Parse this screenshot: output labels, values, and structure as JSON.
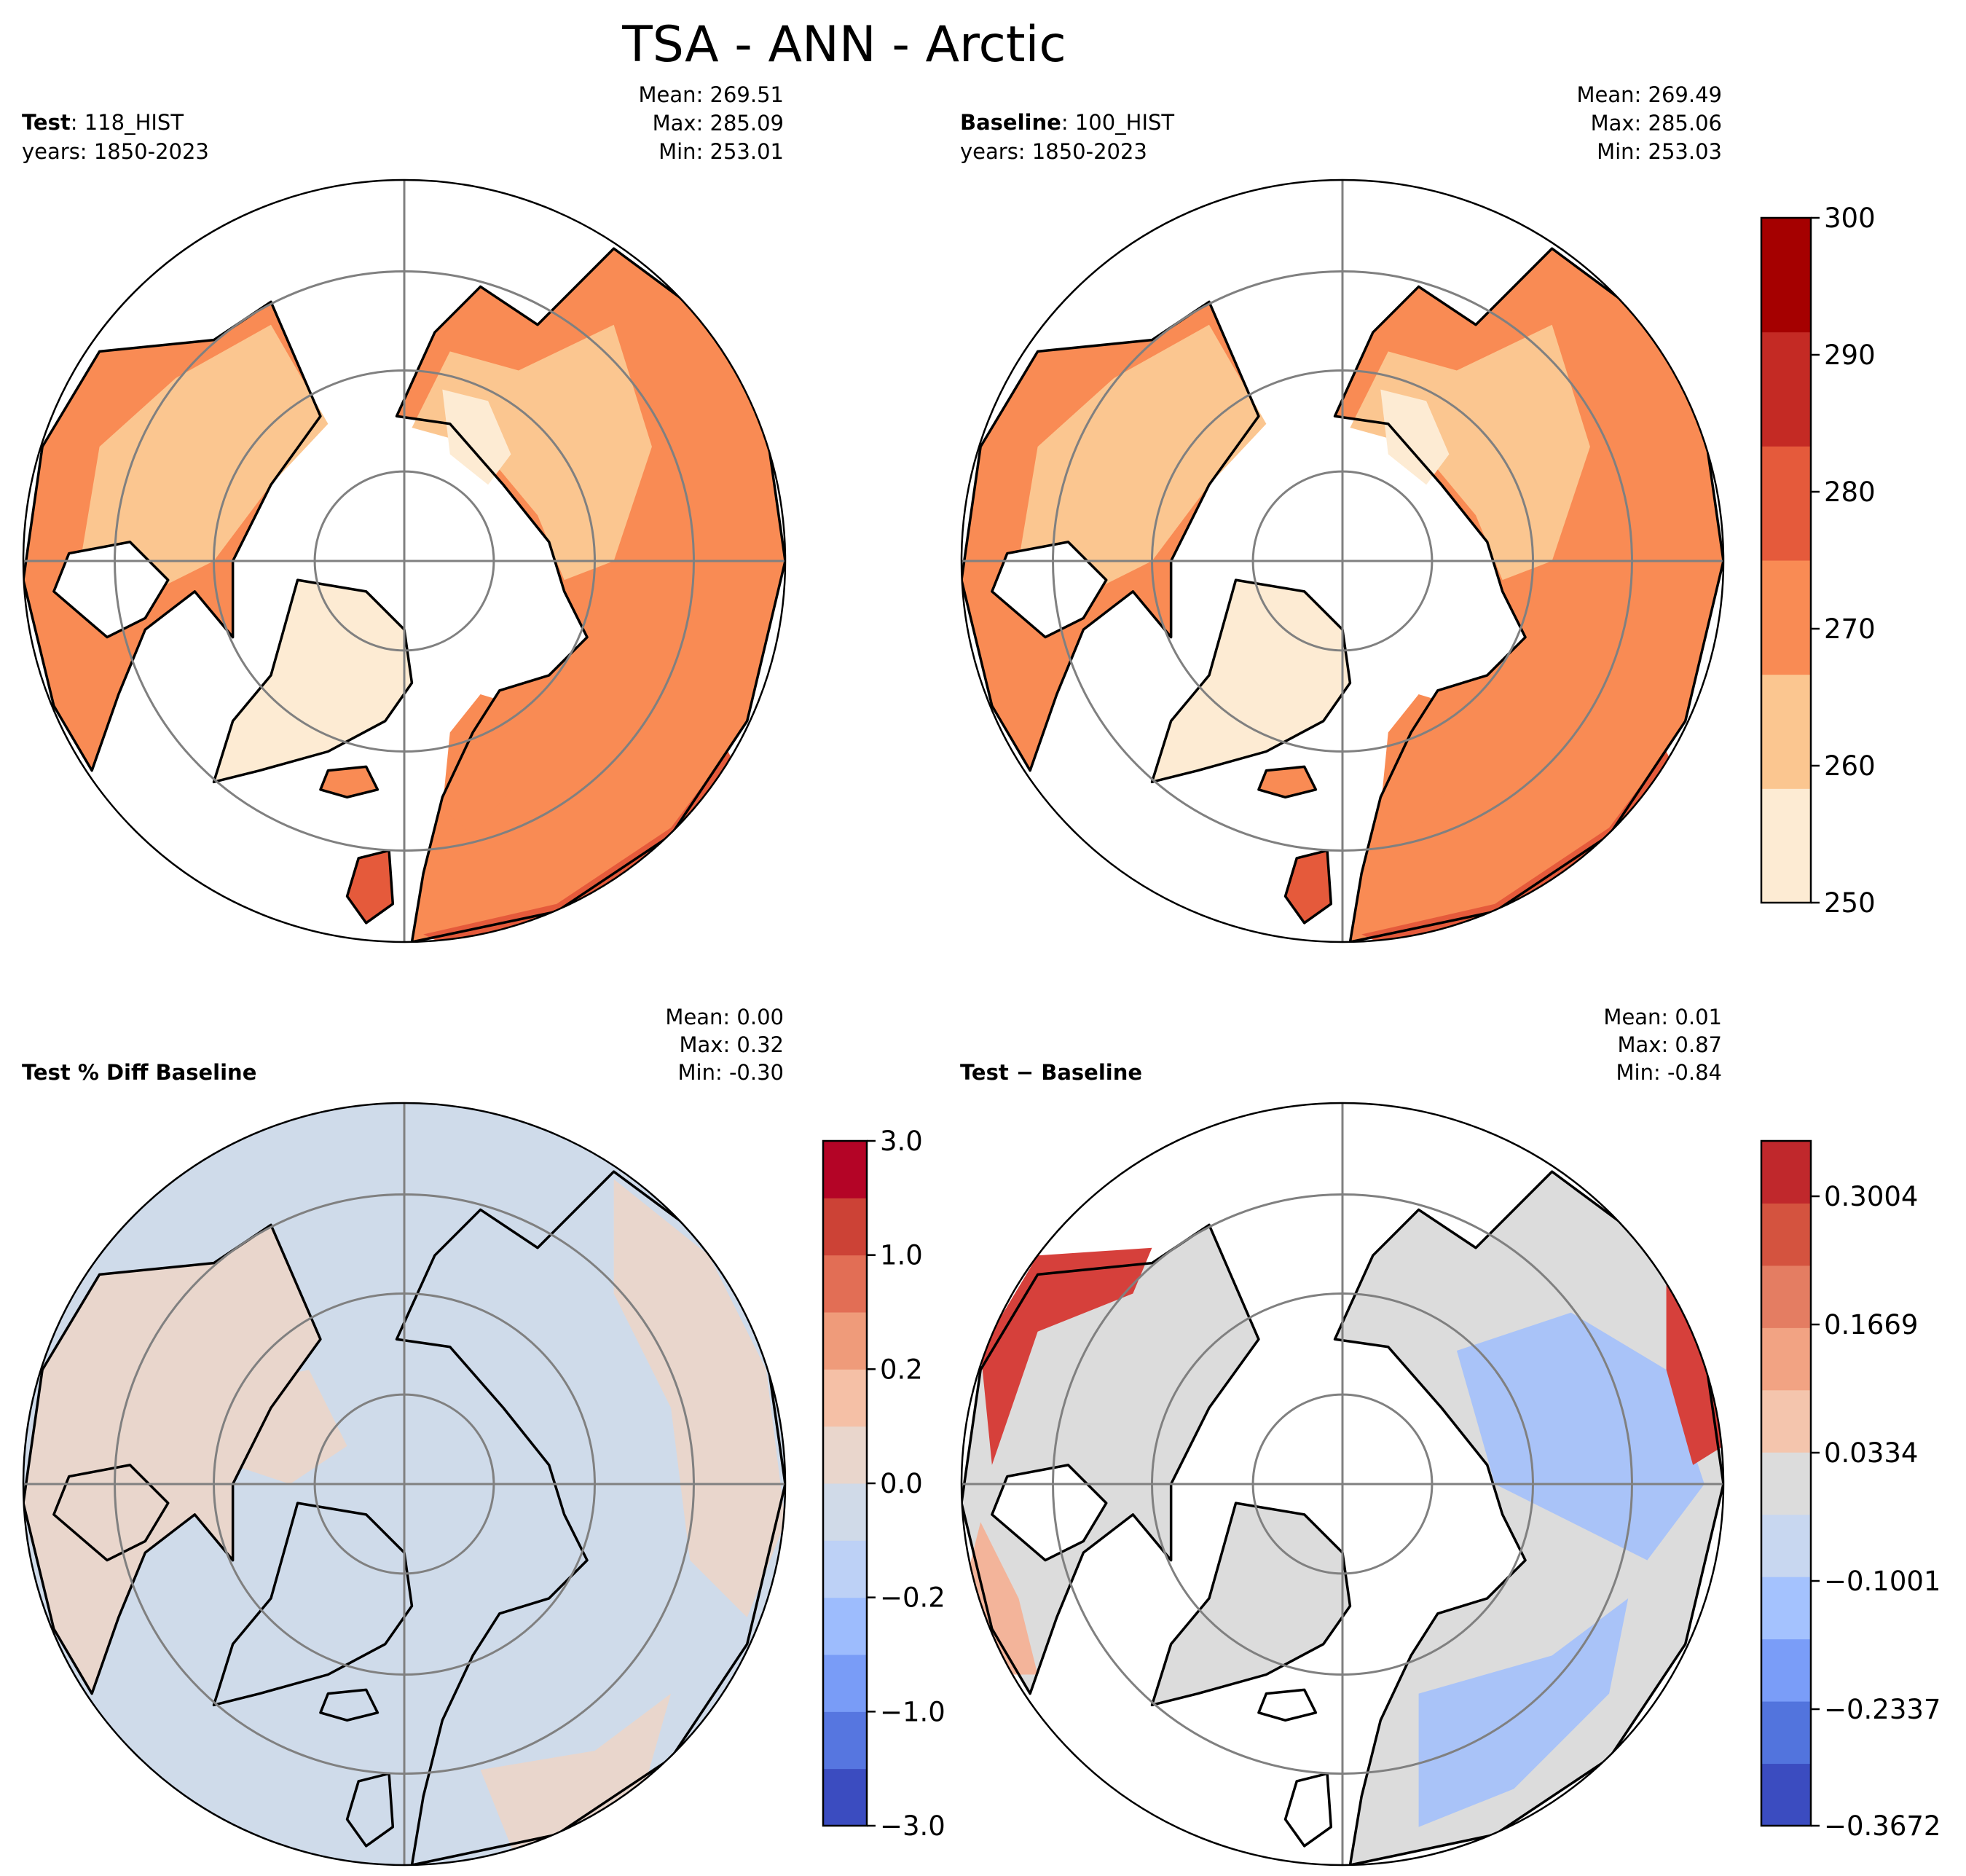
{
  "title": "TSA - ANN - Arctic",
  "panels": {
    "test": {
      "label_bold": "Test",
      "label_rest": ": 118_HIST",
      "years": "years: 1850-2023",
      "mean": "Mean: 269.51",
      "max": "Max: 285.09",
      "min": "Min: 253.01"
    },
    "baseline": {
      "label_bold": "Baseline",
      "label_rest": ": 100_HIST",
      "years": "years: 1850-2023",
      "mean": "Mean: 269.49",
      "max": "Max: 285.06",
      "min": "Min: 253.03"
    },
    "pctdiff": {
      "label_bold": "Test % Diff Baseline",
      "mean": "Mean:  0.00",
      "max": "Max:  0.32",
      "min": "Min: -0.30"
    },
    "diff": {
      "label_bold": "Test − Baseline",
      "mean": "Mean:  0.01",
      "max": "Max:  0.87",
      "min": "Min: -0.84"
    }
  },
  "colorbars": {
    "abs": {
      "ticks": [
        "300",
        "290",
        "280",
        "270",
        "260",
        "250"
      ],
      "colors": [
        "#fdebd3",
        "#fbc690",
        "#f98b54",
        "#e55a3b",
        "#c42a24",
        "#a50000"
      ]
    },
    "pct": {
      "ticks": [
        "3.0",
        "1.0",
        "0.2",
        "0.0",
        "−0.2",
        "−1.0",
        "−3.0"
      ],
      "colors": [
        "#3b4cc0",
        "#5676e0",
        "#799cf7",
        "#9dbcfd",
        "#bdd1f6",
        "#d0dae8",
        "#e9d6cc",
        "#f5c0a6",
        "#ef9b7a",
        "#e26e55",
        "#cc4236",
        "#b40426"
      ]
    },
    "diff": {
      "ticks": [
        "0.3004",
        "0.1669",
        "0.0334",
        "−0.1001",
        "−0.2337",
        "−0.3672"
      ],
      "colors": [
        "#3b4cc0",
        "#5274dd",
        "#7a9df8",
        "#a4c2fe",
        "#c8d7f0",
        "#dcdcdc",
        "#f4c5ad",
        "#f2a383",
        "#e47d62",
        "#d4533f",
        "#c0282c"
      ]
    }
  },
  "map_colors": {
    "cold": "#fdebd3",
    "mid": "#fbc690",
    "warm": "#f98b54",
    "hot": "#e55a3b",
    "land_outline": "#000000",
    "grid": "#808080",
    "pct_base": "#cfdbea",
    "pct_pos": "#e9d6cc",
    "diff_base": "#dcdcdc",
    "diff_blue": "#a9c3f8",
    "diff_red": "#d6403b"
  },
  "chart_data": [
    {
      "type": "heatmap",
      "title": "TSA - ANN - Arctic",
      "panel": "Test: 118_HIST",
      "projection": "north polar stereographic",
      "stats": {
        "mean": 269.51,
        "max": 285.09,
        "min": 253.01
      },
      "colorbar_range": [
        250,
        300
      ],
      "levels": [
        250,
        260,
        270,
        280,
        290,
        300
      ]
    },
    {
      "type": "heatmap",
      "panel": "Baseline: 100_HIST",
      "projection": "north polar stereographic",
      "stats": {
        "mean": 269.49,
        "max": 285.06,
        "min": 253.03
      },
      "colorbar_range": [
        250,
        300
      ],
      "levels": [
        250,
        260,
        270,
        280,
        290,
        300
      ]
    },
    {
      "type": "heatmap",
      "panel": "Test % Diff Baseline",
      "projection": "north polar stereographic",
      "stats": {
        "mean": 0.0,
        "max": 0.32,
        "min": -0.3
      },
      "colorbar_ticks": [
        -3.0,
        -1.0,
        -0.2,
        0.0,
        0.2,
        1.0,
        3.0
      ]
    },
    {
      "type": "heatmap",
      "panel": "Test − Baseline",
      "projection": "north polar stereographic",
      "stats": {
        "mean": 0.01,
        "max": 0.87,
        "min": -0.84
      },
      "colorbar_ticks": [
        -0.3672,
        -0.2337,
        -0.1001,
        0.0334,
        0.1669,
        0.3004
      ]
    }
  ]
}
